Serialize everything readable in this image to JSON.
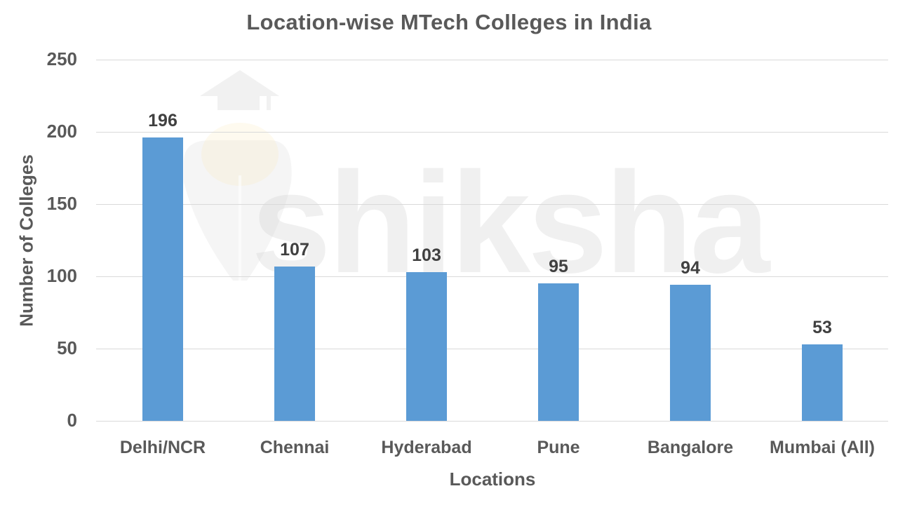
{
  "chart_data": {
    "type": "bar",
    "title": "Location-wise MTech Colleges in India",
    "xlabel": "Locations",
    "ylabel": "Number of Colleges",
    "categories": [
      "Delhi/NCR",
      "Chennai",
      "Hyderabad",
      "Pune",
      "Bangalore",
      "Mumbai (All)"
    ],
    "values": [
      196,
      107,
      103,
      95,
      94,
      53
    ],
    "data_labels": [
      "196",
      "107",
      "103",
      "95",
      "94",
      "53"
    ],
    "ylim": [
      0,
      250
    ],
    "yticks": [
      "0",
      "50",
      "100",
      "150",
      "200",
      "250"
    ],
    "grid": true,
    "legend": null,
    "bar_color": "#5b9bd5"
  },
  "watermark": {
    "text": "shiksha"
  }
}
